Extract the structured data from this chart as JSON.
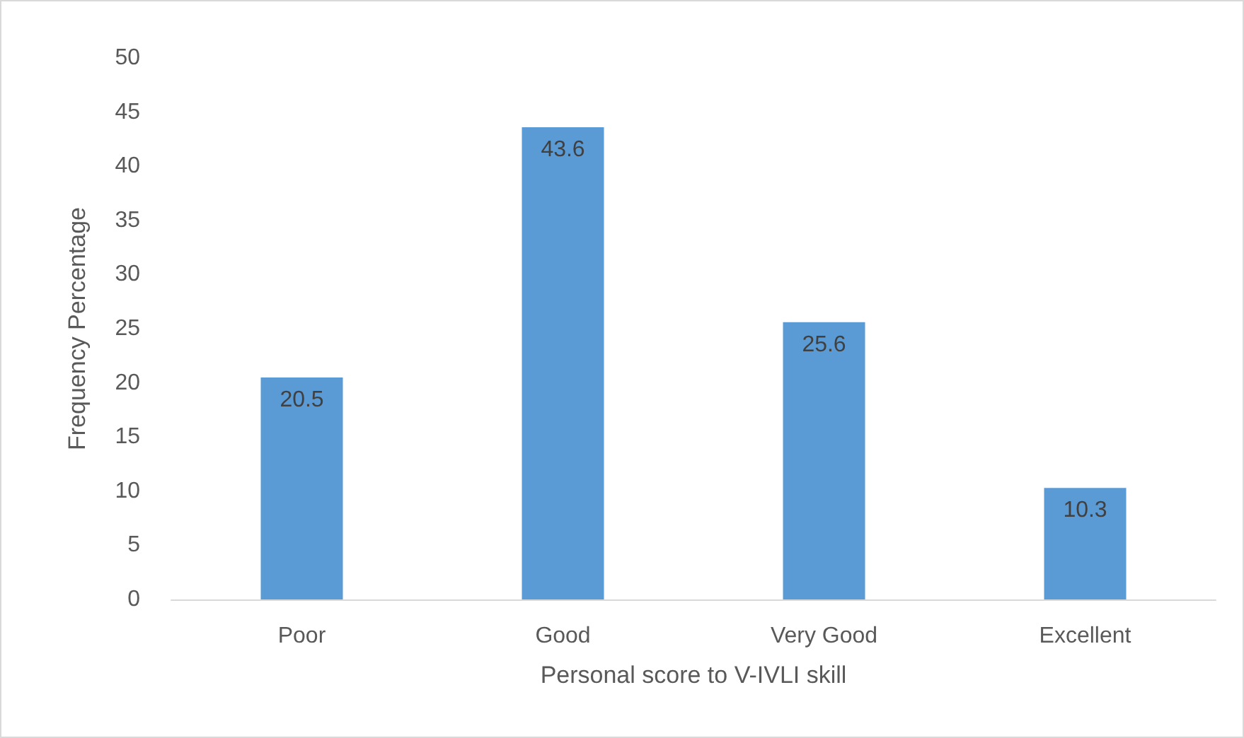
{
  "chart_data": {
    "type": "bar",
    "xlabel": "Personal score to V-IVLI skill",
    "ylabel": "Frequency Percentage",
    "categories": [
      "Poor",
      "Good",
      "Very Good",
      "Excellent"
    ],
    "values": [
      20.5,
      43.6,
      25.6,
      10.3
    ],
    "color": "#5b9bd5",
    "ylim": [
      0,
      50
    ],
    "yticks": [
      0,
      5,
      10,
      15,
      20,
      25,
      30,
      35,
      40,
      45,
      50
    ],
    "grid": false,
    "data_labels": true
  }
}
